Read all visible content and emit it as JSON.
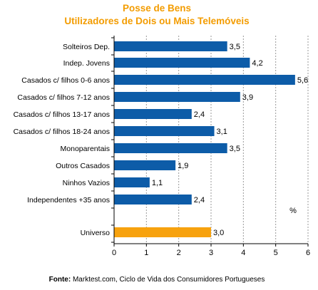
{
  "chart_data": {
    "type": "bar",
    "orientation": "horizontal",
    "title": "Posse de Bens",
    "subtitle": "Utilizadores de Dois ou Mais Telemóveis",
    "categories": [
      "Solteiros Dep.",
      "Indep. Jovens",
      "Casados c/ filhos  0-6 anos",
      "Casados  c/ filhos 7-12 anos",
      "Casados c/ filhos 13-17 anos",
      "Casados c/ filhos 18-24 anos",
      "Monoparentais",
      "Outros Casados",
      "Ninhos Vazios",
      "Independentes +35 anos",
      "Universo"
    ],
    "values": [
      3.5,
      4.2,
      5.6,
      3.9,
      2.4,
      3.1,
      3.5,
      1.9,
      1.1,
      2.4,
      3.0
    ],
    "value_labels": [
      "3,5",
      "4,2",
      "5,6",
      "3,9",
      "2,4",
      "3,1",
      "3,5",
      "1,9",
      "1,1",
      "2,4",
      "3,0"
    ],
    "highlight_category": "Universo",
    "xlim": [
      0,
      6
    ],
    "x_ticks": [
      "0",
      "1",
      "2",
      "3",
      "4",
      "5",
      "6"
    ],
    "unit_label": "%",
    "grid": "vertical dashed",
    "colors": {
      "bar": "#0d5ca8",
      "highlight_bar": "#f7a20e",
      "title": "#f39c00",
      "grid": "#9a9a9a",
      "axis": "#000000"
    }
  },
  "source": {
    "label": "Fonte:",
    "text": " Marktest.com, Ciclo de Vida dos Consumidores Portugueses"
  }
}
